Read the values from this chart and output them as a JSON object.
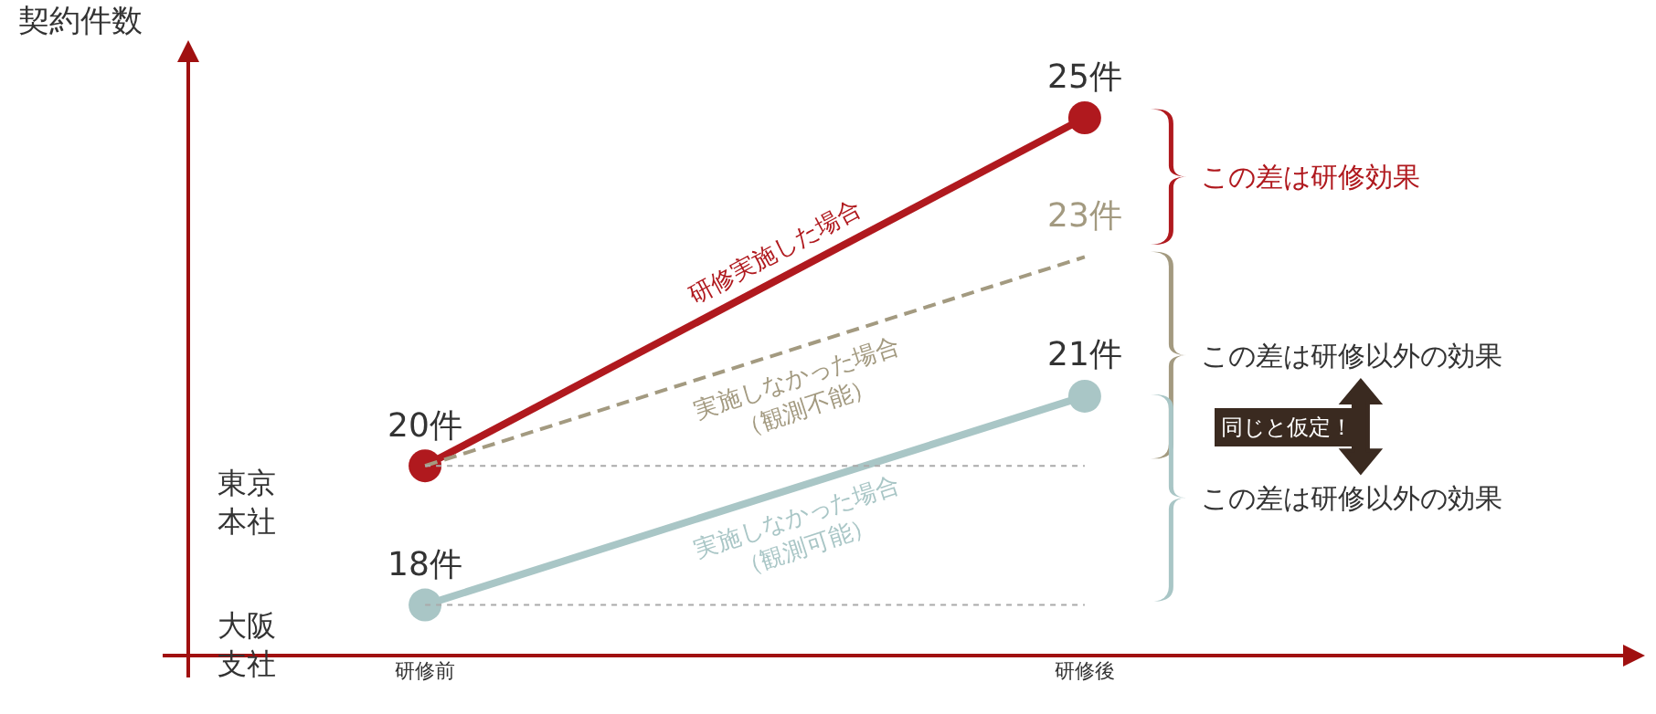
{
  "chart_data": {
    "type": "line",
    "ylabel": "契約件数",
    "categories": [
      "研修前",
      "研修後"
    ],
    "series": [
      {
        "name": "研修実施した場合",
        "color": "#b0191e",
        "values": [
          20,
          25
        ],
        "value_labels": [
          "20件",
          "25件"
        ],
        "line_style": "solid"
      },
      {
        "name": "実施しなかった場合\n（観測不能）",
        "color": "#a39a80",
        "values": [
          20,
          23
        ],
        "value_labels": [
          null,
          "23件"
        ],
        "line_style": "dashed",
        "marker": "none"
      },
      {
        "name": "実施しなかった場合\n（観測可能）",
        "color": "#a9c6c6",
        "values": [
          18,
          21
        ],
        "value_labels": [
          "18件",
          "21件"
        ],
        "line_style": "solid"
      },
      {
        "color": "#aaaaaa",
        "values": [
          20,
          20
        ],
        "line_style": "dotted",
        "marker": "none"
      },
      {
        "color": "#aaaaaa",
        "values": [
          18,
          18
        ],
        "line_style": "dotted",
        "marker": "none"
      }
    ],
    "tick_labels": "x",
    "grid": false,
    "legend": false,
    "marker": "circle",
    "annotations": [
      "東京本社",
      "大阪支社",
      "この差は研修効果",
      "この差は研修以外の効果",
      "この差は研修以外の効果",
      "同じと仮定！"
    ]
  }
}
